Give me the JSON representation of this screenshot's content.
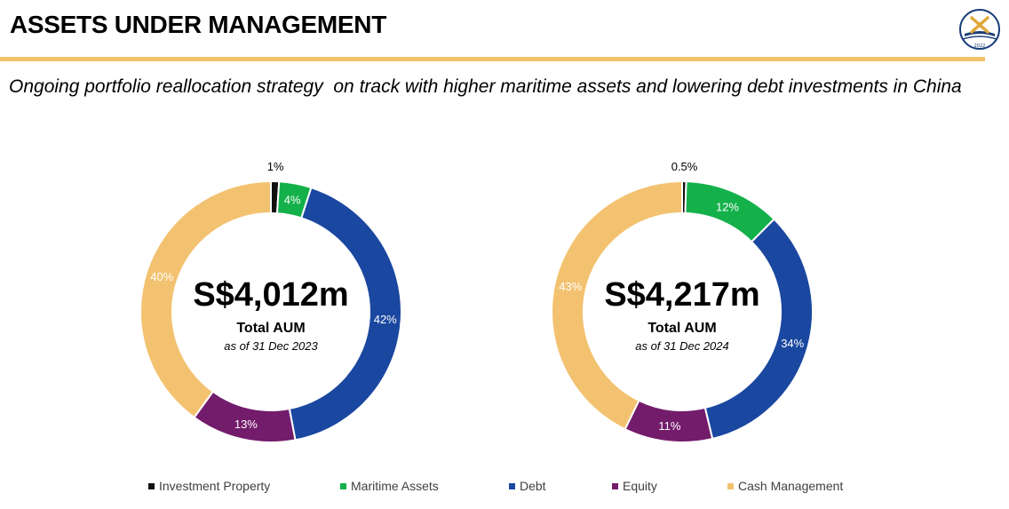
{
  "header": {
    "title": "ASSETS UNDER MANAGEMENT",
    "subtitle": "Ongoing portfolio reallocation strategy  on track with higher maritime assets and lowering debt investments in China",
    "logo_year": "2022"
  },
  "colors": {
    "accent_rule": "#f2c26b",
    "investment_property": "#111111",
    "maritime_assets": "#14b14b",
    "debt": "#1a47a0",
    "equity": "#731c6b",
    "cash_management": "#f3c270"
  },
  "legend": [
    {
      "label": "Investment Property",
      "color": "#111111"
    },
    {
      "label": "Maritime Assets",
      "color": "#14b14b"
    },
    {
      "label": "Debt",
      "color": "#1a47a0"
    },
    {
      "label": "Equity",
      "color": "#731c6b"
    },
    {
      "label": "Cash Management",
      "color": "#f3c270"
    }
  ],
  "chart_data": [
    {
      "type": "pie",
      "style": "donut",
      "center_value": "S$4,012m",
      "center_label": "Total AUM",
      "center_sublabel": "as of 31 Dec 2023",
      "categories": [
        "Investment Property",
        "Maritime Assets",
        "Debt",
        "Equity",
        "Cash Management"
      ],
      "values": [
        1,
        4,
        42,
        13,
        40
      ],
      "labels": [
        "1%",
        "4%",
        "42%",
        "13%",
        "40%"
      ]
    },
    {
      "type": "pie",
      "style": "donut",
      "center_value": "S$4,217m",
      "center_label": "Total AUM",
      "center_sublabel": "as of 31 Dec 2024",
      "categories": [
        "Investment Property",
        "Maritime Assets",
        "Debt",
        "Equity",
        "Cash Management"
      ],
      "values": [
        0.5,
        12,
        34,
        11,
        43
      ],
      "labels": [
        "0.5%",
        "12%",
        "34%",
        "11%",
        "43%"
      ]
    }
  ]
}
